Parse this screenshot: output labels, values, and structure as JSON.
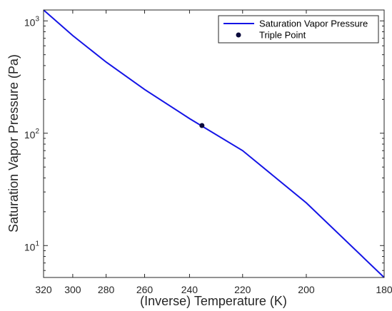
{
  "chart_data": {
    "type": "line",
    "xlabel": "(Inverse) Temperature (K)",
    "ylabel": "Saturation Vapor Pressure (Pa)",
    "x_scale": "reciprocal",
    "x_reversed": true,
    "y_scale": "log",
    "xlim": [
      320,
      180
    ],
    "ylim": [
      5.2,
      1250
    ],
    "x_ticks": [
      320,
      300,
      280,
      260,
      240,
      220,
      200,
      180
    ],
    "x_tick_labels": [
      "320",
      "300",
      "280",
      "260",
      "240",
      "220",
      "200",
      "180"
    ],
    "y_ticks": [
      10,
      100,
      1000
    ],
    "y_tick_labels": [
      {
        "base": "10",
        "exp": "1"
      },
      {
        "base": "10",
        "exp": "2"
      },
      {
        "base": "10",
        "exp": "3"
      }
    ],
    "grid": false,
    "legend_position": "top-right",
    "series": [
      {
        "name": "Saturation Vapor Pressure",
        "kind": "line",
        "color": "#1414e6",
        "x": [
          320,
          300,
          280,
          260,
          240,
          220,
          200,
          180
        ],
        "y": [
          1250,
          740,
          430,
          245,
          135,
          70,
          24,
          5.2
        ]
      },
      {
        "name": "Triple Point",
        "kind": "marker",
        "color": "#0a0a3c",
        "x": [
          235
        ],
        "y": [
          117
        ]
      }
    ]
  }
}
